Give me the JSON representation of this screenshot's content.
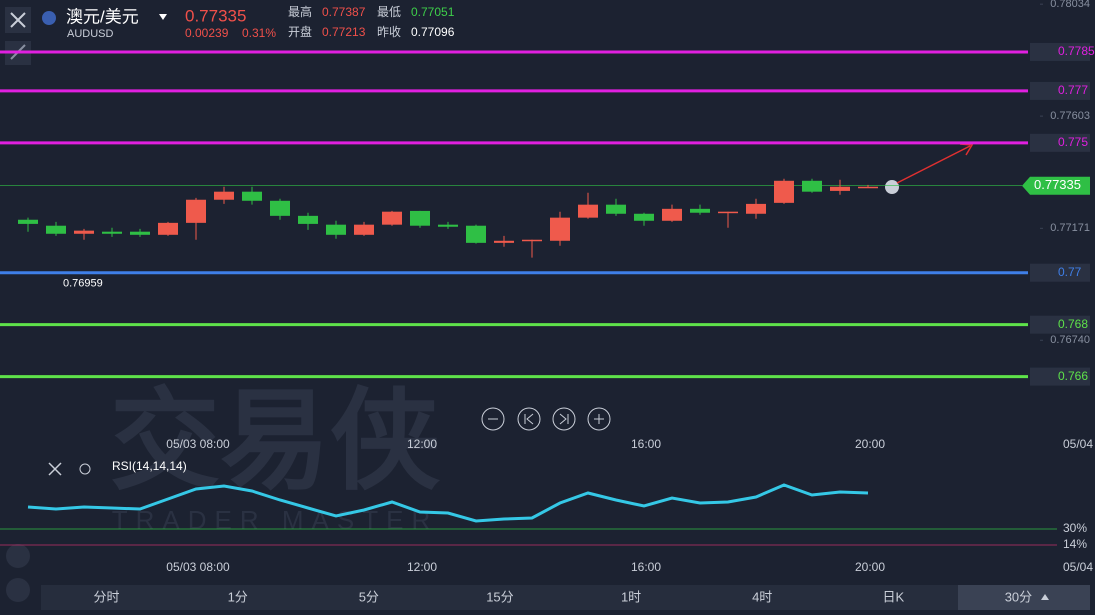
{
  "header": {
    "name": "澳元/美元",
    "code": "AUDUSD",
    "price": "0.77335",
    "change": "0.00239",
    "change_pct": "0.31%",
    "stats": [
      {
        "label": "最高",
        "value": "0.77387",
        "color": "#f0504a"
      },
      {
        "label": "开盘",
        "value": "0.77213",
        "color": "#f0504a"
      },
      {
        "label": "最低",
        "value": "0.77051",
        "color": "#3ecf4a"
      },
      {
        "label": "昨收",
        "value": "0.77096",
        "color": "#ffffff"
      }
    ]
  },
  "watermark": {
    "title": "交易侠",
    "subtitle": "TRADER MASTER"
  },
  "chart_data": [
    {
      "type": "candlestick",
      "ylim": [
        0.7651,
        0.7805
      ],
      "yticks": [
        0.78034,
        0.77603,
        0.77171,
        {
          "value": 0.7674,
          "label": "0.76740"
        }
      ],
      "levels": [
        {
          "value": 0.7785,
          "color": "#e020e0"
        },
        {
          "value": 0.777,
          "color": "#e020e0"
        },
        {
          "value": 0.775,
          "color": "#e020e0"
        },
        {
          "value": 0.77,
          "color": "#3f7fe8"
        },
        {
          "value": 0.768,
          "color": "#5ee34a"
        },
        {
          "value": 0.766,
          "color": "#5ee34a"
        }
      ],
      "current": 0.77335,
      "low_marker": 0.76959,
      "up_color": "#ef5a4c",
      "down_color": "#2fbf45",
      "open": [
        0.77204,
        0.77181,
        0.7715,
        0.77158,
        0.77158,
        0.77146,
        0.77192,
        0.77281,
        0.77312,
        0.77277,
        0.77219,
        0.77185,
        0.77146,
        0.77185,
        0.77238,
        0.77185,
        0.77181,
        0.77115,
        0.77123,
        0.77123,
        0.77212,
        0.77262,
        0.77227,
        0.772,
        0.77246,
        0.77231,
        0.77227,
        0.77269,
        0.77354,
        0.77315,
        0.77331
      ],
      "high": [
        0.77212,
        0.77196,
        0.77169,
        0.77173,
        0.77169,
        0.77196,
        0.77288,
        0.77331,
        0.77331,
        0.77285,
        0.77231,
        0.772,
        0.77196,
        0.77238,
        0.77238,
        0.77196,
        0.77185,
        0.77142,
        0.77127,
        0.77235,
        0.77308,
        0.77285,
        0.77231,
        0.77262,
        0.77262,
        0.77235,
        0.77285,
        0.77362,
        0.77362,
        0.77358,
        0.77338
      ],
      "low": [
        0.77158,
        0.77142,
        0.77127,
        0.77138,
        0.77138,
        0.77142,
        0.77127,
        0.77265,
        0.77262,
        0.77204,
        0.77165,
        0.77131,
        0.77142,
        0.77181,
        0.77173,
        0.77169,
        0.77112,
        0.771,
        0.77058,
        0.77104,
        0.77208,
        0.77219,
        0.77181,
        0.77196,
        0.77223,
        0.77173,
        0.77208,
        0.77265,
        0.77308,
        0.773,
        0.77327
      ],
      "close": [
        0.77188,
        0.7715,
        0.77162,
        0.7715,
        0.77146,
        0.77192,
        0.77281,
        0.77312,
        0.77277,
        0.77219,
        0.77188,
        0.77146,
        0.77185,
        0.77235,
        0.77181,
        0.77177,
        0.77115,
        0.77123,
        0.77127,
        0.77212,
        0.77262,
        0.77227,
        0.772,
        0.77246,
        0.77231,
        0.77235,
        0.77265,
        0.77354,
        0.77312,
        0.77331,
        0.77331
      ],
      "time_labels": [
        "05/03 08:00",
        "12:00",
        "16:00",
        "20:00",
        "05/04"
      ]
    },
    {
      "type": "line",
      "name": "RSI(14,14,14)",
      "color": "#35c8e6",
      "ylim": [
        0,
        100
      ],
      "yticks": [
        {
          "value": 30,
          "label": "30%"
        },
        {
          "value": 14,
          "label": "14%"
        }
      ],
      "values": [
        52,
        50,
        52,
        51,
        50,
        60,
        70,
        73,
        68,
        59,
        51,
        43,
        49,
        57,
        47,
        46,
        38,
        40,
        41,
        56,
        66,
        59,
        53,
        61,
        56,
        57,
        62,
        74,
        64,
        67,
        66
      ]
    }
  ],
  "tabs": [
    "分时",
    "1分",
    "5分",
    "15分",
    "1时",
    "4时",
    "日K",
    "30分"
  ]
}
